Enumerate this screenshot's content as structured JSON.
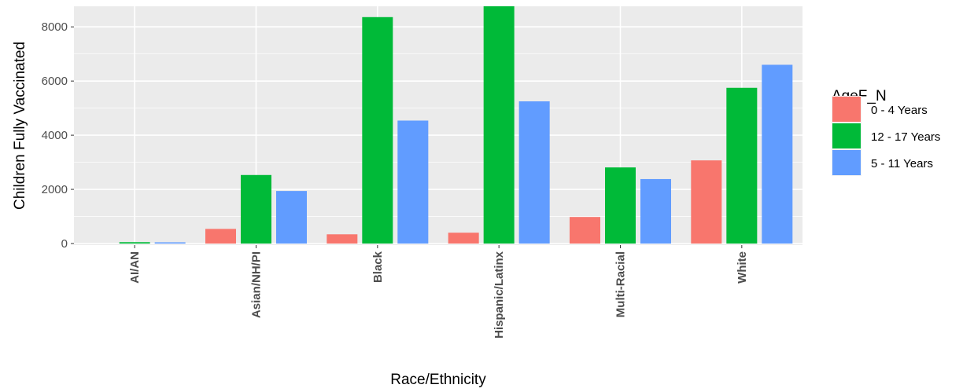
{
  "chart_data": {
    "type": "bar",
    "xlabel": "Race/Ethnicity",
    "ylabel": "Children Fully Vaccinated",
    "categories": [
      "AI/AN",
      "Asian/NH/PI",
      "Black",
      "Hispanic/Latinx",
      "Multi-Racial",
      "White"
    ],
    "series": [
      {
        "name": "0 - 4 Years",
        "color": "#F8766D",
        "values": [
          0,
          540,
          340,
          400,
          980,
          3070
        ]
      },
      {
        "name": "12 - 17 Years",
        "color": "#00BA38",
        "values": [
          50,
          2530,
          8360,
          8760,
          2810,
          5750
        ]
      },
      {
        "name": "5 - 11 Years",
        "color": "#619CFF",
        "values": [
          45,
          1940,
          4540,
          5250,
          2380,
          6600
        ]
      }
    ],
    "ylim": [
      0,
      8760
    ],
    "yticks": [
      0,
      2000,
      4000,
      6000,
      8000
    ],
    "legend": {
      "title": "AgeF_N",
      "position": "right"
    },
    "grid": true,
    "panel_background": "#EBEBEB"
  }
}
